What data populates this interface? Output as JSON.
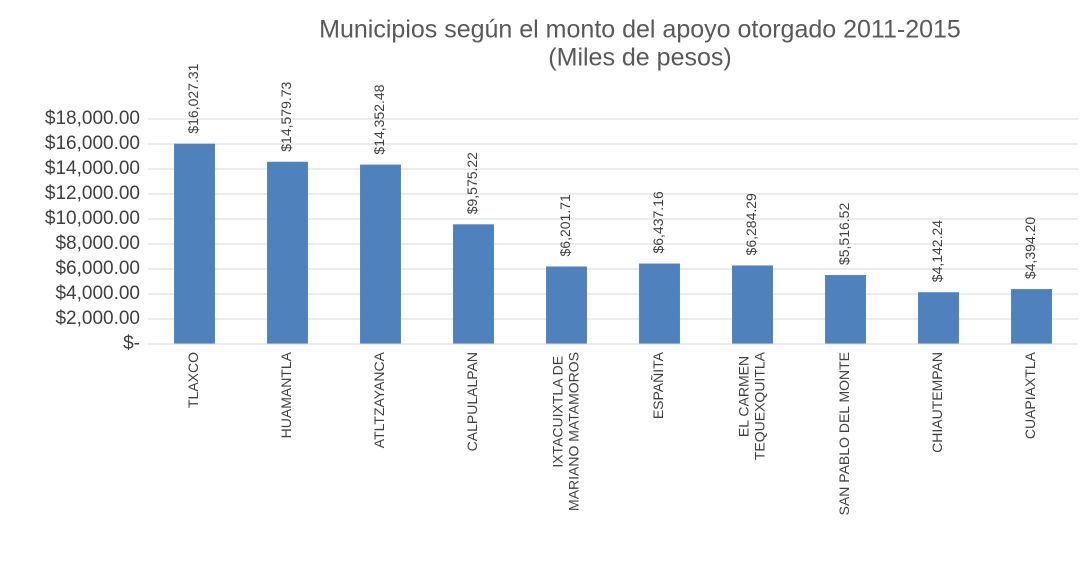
{
  "chart_data": {
    "type": "bar",
    "title": "Municipios según el monto del apoyo otorgado 2011-2015",
    "subtitle": "(Miles de pesos)",
    "categories": [
      "TLAXCO",
      "HUAMANTLA",
      "ATLTZAYANCA",
      "CALPULALPAN",
      "IXTACUIXTLA DE MARIANO MATAMOROS",
      "ESPAÑITA",
      "EL CARMEN TEQUEXQUITLA",
      "SAN PABLO DEL MONTE",
      "CHIAUTEMPAN",
      "CUAPIAXTLA"
    ],
    "values": [
      16027.31,
      14579.73,
      14352.48,
      9575.22,
      6201.71,
      6437.16,
      6284.29,
      5516.52,
      4142.24,
      4394.2
    ],
    "value_labels": [
      "$16,027.31",
      "$14,579.73",
      "$14,352.48",
      "$9,575.22",
      "$6,201.71",
      "$6,437.16",
      "$6,284.29",
      "$5,516.52",
      "$4,142.24",
      "$4,394.20"
    ],
    "color": "#4f81bd",
    "ylim": [
      0,
      18000
    ],
    "yticks": [
      {
        "value": 0,
        "label": "$-"
      },
      {
        "value": 2000,
        "label": "$2,000.00"
      },
      {
        "value": 4000,
        "label": "$4,000.00"
      },
      {
        "value": 6000,
        "label": "$6,000.00"
      },
      {
        "value": 8000,
        "label": "$8,000.00"
      },
      {
        "value": 10000,
        "label": "$10,000.00"
      },
      {
        "value": 12000,
        "label": "$12,000.00"
      },
      {
        "value": 14000,
        "label": "$14,000.00"
      },
      {
        "value": 16000,
        "label": "$16,000.00"
      },
      {
        "value": 18000,
        "label": "$18,000.00"
      }
    ],
    "grid": true
  }
}
